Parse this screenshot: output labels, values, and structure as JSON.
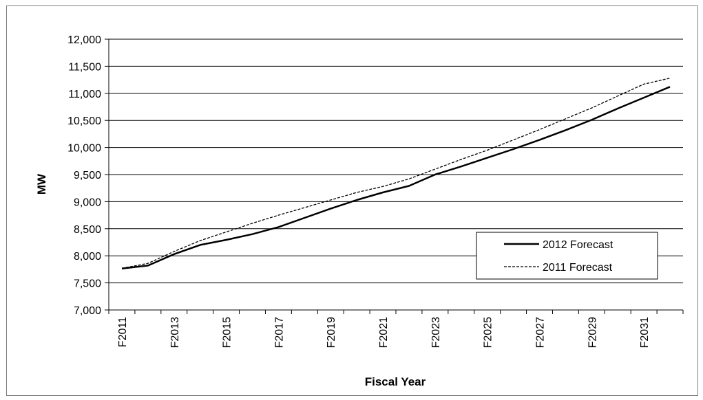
{
  "chart_data": {
    "type": "line",
    "xlabel": "Fiscal Year",
    "ylabel": "MW",
    "ylim": [
      7000,
      12000
    ],
    "y_ticks": [
      "7,000",
      "7,500",
      "8,000",
      "8,500",
      "9,000",
      "9,500",
      "10,000",
      "10,500",
      "11,000",
      "11,500",
      "12,000"
    ],
    "categories": [
      "F2011",
      "F2012",
      "F2013",
      "F2014",
      "F2015",
      "F2016",
      "F2017",
      "F2018",
      "F2019",
      "F2020",
      "F2021",
      "F2022",
      "F2023",
      "F2024",
      "F2025",
      "F2026",
      "F2027",
      "F2028",
      "F2029",
      "F2030",
      "F2031",
      "F2032"
    ],
    "x_tick_labels": [
      "F2011",
      "",
      "F2013",
      "",
      "F2015",
      "",
      "F2017",
      "",
      "F2019",
      "",
      "F2021",
      "",
      "F2023",
      "",
      "F2025",
      "",
      "F2027",
      "",
      "F2029",
      "",
      "F2031",
      ""
    ],
    "grid": true,
    "legend_position": "lower-right",
    "series": [
      {
        "name": "2012 Forecast",
        "style": "solid",
        "color": "#000000",
        "values": [
          7765,
          7820,
          8030,
          8200,
          8295,
          8400,
          8530,
          8700,
          8870,
          9030,
          9170,
          9290,
          9500,
          9650,
          9810,
          9970,
          10140,
          10320,
          10510,
          10720,
          10920,
          11120
        ]
      },
      {
        "name": "2011 Forecast",
        "style": "dashed",
        "color": "#000000",
        "values": [
          7770,
          7860,
          8080,
          8280,
          8440,
          8600,
          8750,
          8890,
          9030,
          9170,
          9280,
          9420,
          9600,
          9780,
          9950,
          10140,
          10330,
          10530,
          10730,
          10950,
          11170,
          11280
        ]
      }
    ]
  }
}
